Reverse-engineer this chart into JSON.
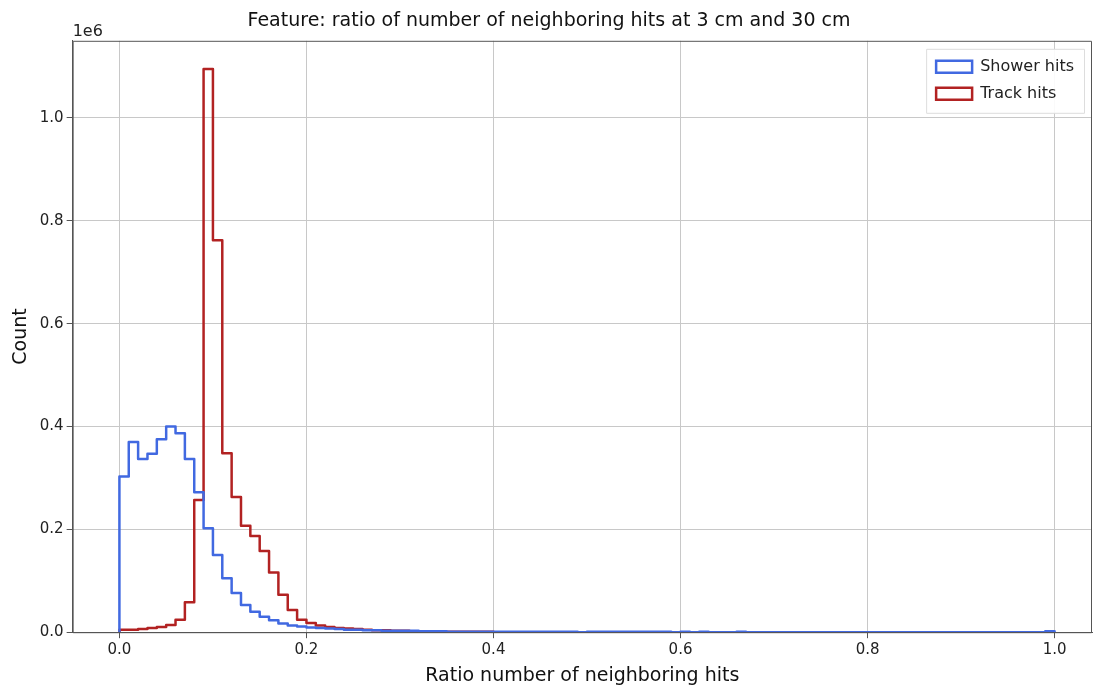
{
  "chart_data": {
    "type": "histogram",
    "title": "Feature: ratio of number of neighboring hits at 3 cm and 30 cm",
    "xlabel": "Ratio number of neighboring hits",
    "ylabel": "Count",
    "annotations": [
      "1e6"
    ],
    "bins": [
      0,
      0.01,
      0.02,
      0.03,
      0.04,
      0.05,
      0.06,
      0.07,
      0.08,
      0.09,
      0.1,
      0.11,
      0.12,
      0.13,
      0.14,
      0.15,
      0.16,
      0.17,
      0.18,
      0.19,
      0.2,
      0.21,
      0.22,
      0.23,
      0.24,
      0.25,
      0.26,
      0.27,
      0.28,
      0.29,
      0.3,
      0.31,
      0.32,
      0.33,
      0.34,
      0.35,
      0.36,
      0.37,
      0.38,
      0.39,
      0.4,
      0.41,
      0.42,
      0.43,
      0.44,
      0.45,
      0.46,
      0.47,
      0.48,
      0.49,
      0.5,
      0.51,
      0.52,
      0.53,
      0.54,
      0.55,
      0.56,
      0.57,
      0.58,
      0.59,
      0.6,
      0.61,
      0.62,
      0.63,
      0.64,
      0.65,
      0.66,
      0.67,
      0.68,
      0.69,
      0.7,
      0.71,
      0.72,
      0.73,
      0.74,
      0.75,
      0.76,
      0.77,
      0.78,
      0.79,
      0.8,
      0.81,
      0.82,
      0.83,
      0.84,
      0.85,
      0.86,
      0.87,
      0.88,
      0.89,
      0.9,
      0.91,
      0.92,
      0.93,
      0.94,
      0.95,
      0.96,
      0.97,
      0.98,
      0.99,
      1
    ],
    "series": [
      {
        "name": "Shower hits",
        "color": "#4169e1",
        "values": [
          0.303,
          0.37,
          0.337,
          0.347,
          0.375,
          0.4,
          0.387,
          0.337,
          0.272,
          0.202,
          0.15,
          0.105,
          0.076,
          0.053,
          0.04,
          0.03,
          0.023,
          0.017,
          0.013,
          0.011,
          0.009,
          0.008,
          0.007,
          0.006,
          0.005,
          0.005,
          0.004,
          0.004,
          0.003,
          0.003,
          0.003,
          0.003,
          0.002,
          0.002,
          0.002,
          0.001,
          0.001,
          0.001,
          0.001,
          0.001,
          0.001,
          0.001,
          0.001,
          0.001,
          0.001,
          0.001,
          0.001,
          0.001,
          0.001,
          0,
          0.001,
          0.001,
          0.001,
          0.001,
          0.001,
          0.001,
          0.001,
          0.001,
          0.001,
          0,
          0.001,
          0,
          0.001,
          0,
          0,
          0,
          0.001,
          0,
          0,
          0,
          0,
          0,
          0,
          0,
          0,
          0,
          0,
          0,
          0,
          0,
          0,
          0,
          0,
          0,
          0,
          0,
          0,
          0,
          0,
          0,
          0,
          0,
          0,
          0,
          0,
          0,
          0,
          0,
          0,
          0.002
        ]
      },
      {
        "name": "Track hits",
        "color": "#b22222",
        "values": [
          0.005,
          0.005,
          0.006,
          0.008,
          0.01,
          0.014,
          0.024,
          0.058,
          0.257,
          1.095,
          0.762,
          0.348,
          0.263,
          0.207,
          0.187,
          0.158,
          0.116,
          0.073,
          0.043,
          0.024,
          0.018,
          0.013,
          0.01,
          0.008,
          0.007,
          0.006,
          0.005,
          0.004,
          0.004,
          0.003,
          0.003,
          0.002,
          0.002,
          0.002,
          0.001,
          0.001,
          0.001,
          0.001,
          0.001,
          0.001,
          0,
          0,
          0,
          0,
          0,
          0,
          0,
          0,
          0,
          0,
          0,
          0,
          0,
          0,
          0,
          0,
          0,
          0,
          0,
          0,
          0,
          0,
          0,
          0,
          0,
          0,
          0,
          0,
          0,
          0,
          0,
          0,
          0,
          0,
          0,
          0,
          0,
          0,
          0,
          0,
          0,
          0,
          0,
          0,
          0,
          0,
          0,
          0,
          0,
          0,
          0,
          0,
          0,
          0,
          0,
          0,
          0,
          0,
          0,
          0
        ]
      }
    ],
    "xlim": [
      -0.05,
      1.04
    ],
    "xticks": [
      {
        "value": 0,
        "label": "0.0"
      },
      0.2,
      0.4,
      0.6,
      0.8,
      {
        "value": 1,
        "label": "1.0"
      }
    ],
    "ylim": [
      0,
      1.15
    ],
    "yticks": [
      {
        "value": 0,
        "label": "0.0"
      },
      0.2,
      0.4,
      0.6,
      0.8,
      {
        "value": 1,
        "label": "1.0"
      }
    ],
    "grid": true,
    "legend": "top right"
  }
}
